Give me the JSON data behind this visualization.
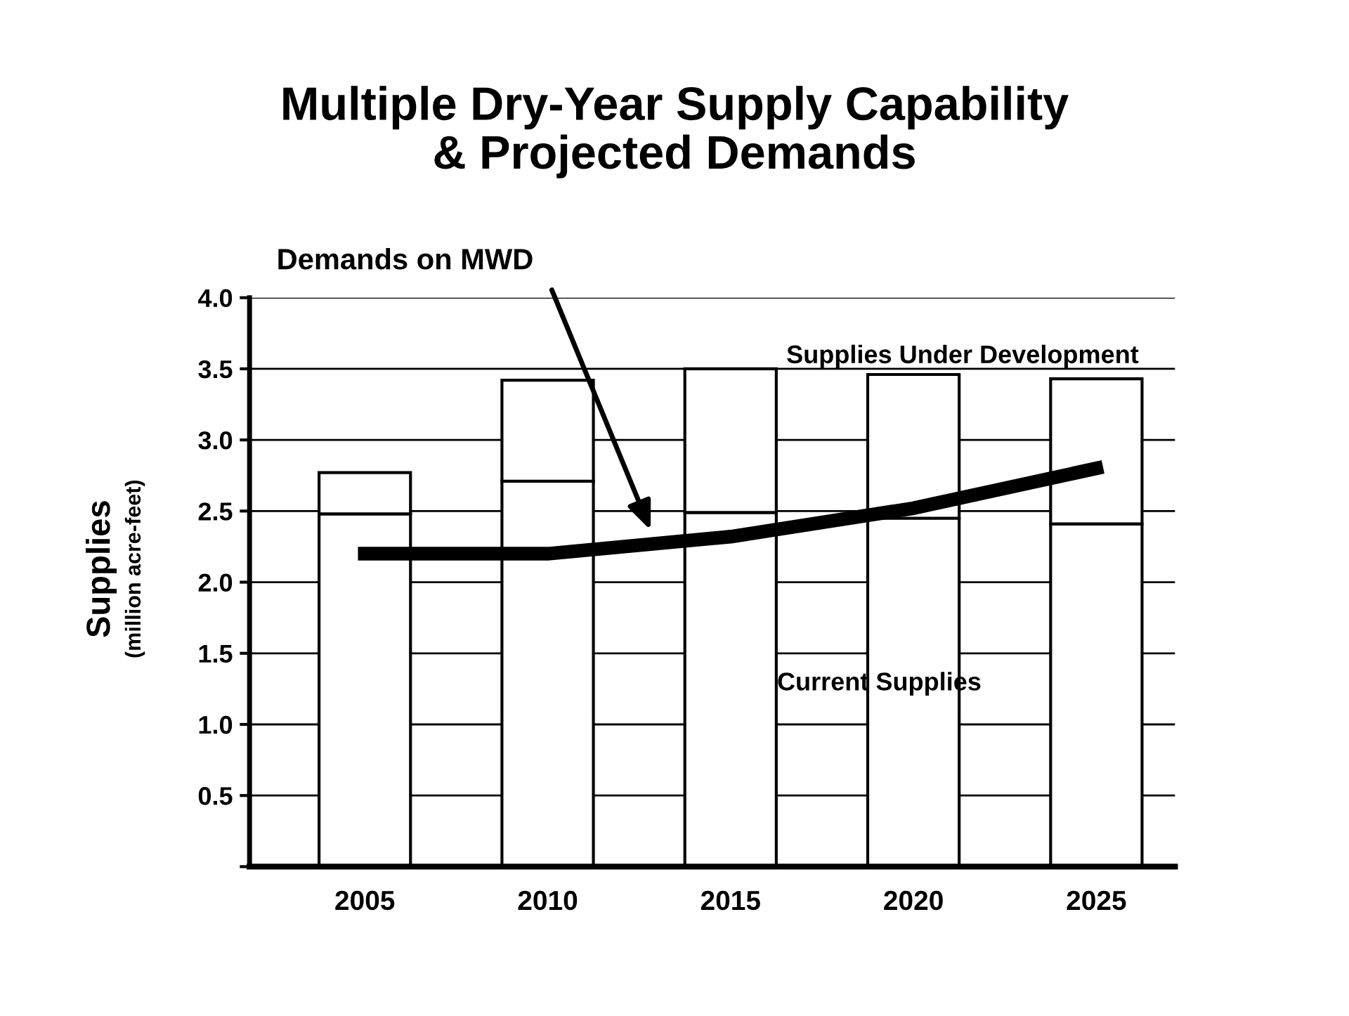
{
  "chart_data": {
    "type": "bar",
    "title": "Multiple Dry-Year Supply Capability\n& Projected Demands",
    "ylabel": "Supplies\n(million acre-feet)",
    "categories": [
      "2005",
      "2010",
      "2015",
      "2020",
      "2025"
    ],
    "stacked": true,
    "series": [
      {
        "name": "Current Supplies",
        "color": "#ffffff",
        "values": [
          2.48,
          2.71,
          2.49,
          2.45,
          2.41
        ]
      },
      {
        "name": "Supplies Under Development",
        "color": "#ffffff",
        "values": [
          0.29,
          0.71,
          1.01,
          1.01,
          1.02
        ]
      },
      {
        "name": "Demands on MWD",
        "type": "line",
        "color": "#000000",
        "values": [
          2.2,
          2.2,
          2.32,
          2.52,
          2.8
        ]
      }
    ],
    "ylim": [
      0,
      4.0
    ],
    "yticks": [
      {
        "value": 0,
        "label": null
      },
      0.5,
      {
        "value": 1,
        "label": "1.0"
      },
      1.5,
      {
        "value": 2,
        "label": "2.0"
      },
      2.5,
      {
        "value": 3,
        "label": "3.0"
      },
      3.5,
      {
        "value": 4,
        "label": "4.0"
      }
    ],
    "grid": "y",
    "legend": false
  }
}
